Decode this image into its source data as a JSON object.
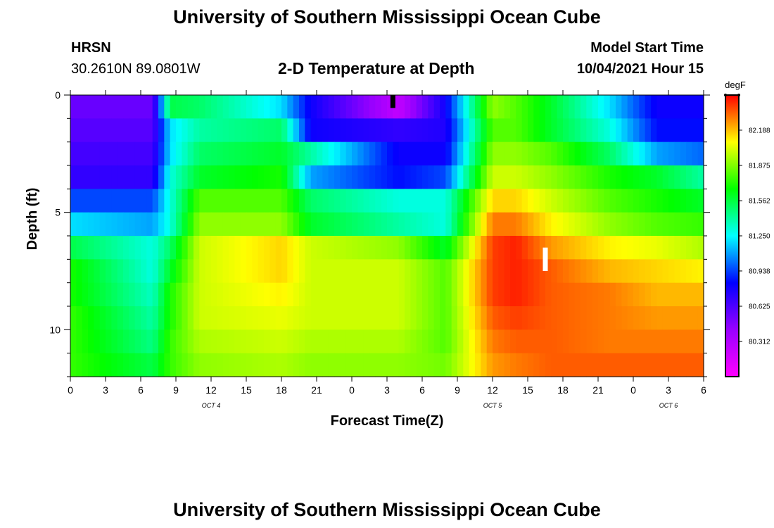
{
  "header": {
    "title": "University of Southern Mississippi Ocean Cube",
    "station": "HRSN",
    "location": "30.2610N  89.0801W",
    "plot_title": "2-D Temperature at Depth",
    "model_label": "Model Start Time",
    "model_time": "10/04/2021 Hour 15"
  },
  "footer": {
    "title": "University of Southern Mississippi Ocean Cube"
  },
  "chart_data": {
    "type": "heatmap",
    "title": "2-D Temperature at Depth",
    "xlabel": "Forecast Time(Z)",
    "ylabel": "Depth (ft)",
    "x_tick_labels": [
      "0",
      "3",
      "6",
      "9",
      "12",
      "15",
      "18",
      "21",
      "0",
      "3",
      "6",
      "9",
      "12",
      "15",
      "18",
      "21",
      "0",
      "3",
      "6"
    ],
    "date_labels": [
      {
        "label": "OCT 4",
        "hour": 12
      },
      {
        "label": "OCT 5",
        "hour": 36
      },
      {
        "label": "OCT 6",
        "hour": 51
      }
    ],
    "y_tick_labels": [
      "0",
      "5",
      "10"
    ],
    "xlim_hours": [
      0,
      54
    ],
    "ylim_ft": [
      0,
      12
    ],
    "colorbar": {
      "unit": "degF",
      "tick_labels": [
        "82.188",
        "81.875",
        "81.562",
        "81.250",
        "80.938",
        "80.625",
        "80.312"
      ],
      "tick_values": [
        82.188,
        81.875,
        81.562,
        81.25,
        80.938,
        80.625,
        80.312
      ],
      "range": [
        80.0,
        82.5
      ],
      "colors": [
        "#ff00ff",
        "#9900ff",
        "#0000ff",
        "#00ffff",
        "#00ff00",
        "#ffff00",
        "#ff0000"
      ]
    },
    "depth_layers_ft": [
      0.5,
      1.5,
      2.5,
      3.5,
      4.5,
      5.5,
      6.5,
      7.5,
      8.5,
      9.5,
      10.5,
      11.5
    ],
    "time_anchors_hours": [
      0,
      7,
      8.5,
      11,
      18,
      20.5,
      28,
      32,
      36,
      38,
      41,
      46,
      50,
      54
    ],
    "temperature_degF": [
      [
        80.55,
        80.55,
        81.55,
        81.5,
        81.2,
        80.8,
        80.25,
        80.8,
        81.9,
        81.8,
        81.6,
        81.2,
        80.8,
        80.8
      ],
      [
        80.6,
        80.6,
        81.2,
        81.4,
        81.5,
        80.8,
        80.7,
        80.75,
        81.8,
        81.8,
        81.6,
        81.3,
        80.85,
        80.85
      ],
      [
        80.65,
        80.65,
        81.2,
        81.5,
        81.6,
        81.4,
        80.8,
        80.8,
        81.9,
        81.9,
        81.8,
        81.5,
        81.1,
        81.0
      ],
      [
        80.7,
        80.7,
        81.3,
        81.6,
        81.7,
        81.1,
        80.85,
        80.95,
        82.0,
        82.0,
        81.9,
        81.7,
        81.6,
        81.4
      ],
      [
        80.95,
        80.95,
        81.3,
        81.8,
        81.8,
        81.5,
        81.3,
        81.3,
        82.15,
        82.15,
        82.0,
        81.8,
        81.7,
        81.6
      ],
      [
        81.2,
        81.1,
        81.3,
        81.9,
        81.9,
        81.6,
        81.4,
        81.3,
        82.3,
        82.3,
        82.1,
        81.9,
        81.8,
        81.75
      ],
      [
        81.55,
        81.3,
        81.5,
        82.0,
        82.15,
        82.0,
        81.9,
        81.6,
        82.4,
        82.45,
        82.25,
        82.1,
        82.05,
        81.95
      ],
      [
        81.7,
        81.3,
        81.6,
        82.0,
        82.15,
        82.0,
        82.0,
        81.8,
        82.4,
        82.45,
        82.35,
        82.2,
        82.15,
        82.1
      ],
      [
        81.7,
        81.35,
        81.7,
        82.0,
        82.1,
        82.0,
        82.0,
        81.8,
        82.4,
        82.45,
        82.35,
        82.3,
        82.2,
        82.2
      ],
      [
        81.75,
        81.4,
        81.7,
        82.0,
        82.05,
        82.0,
        82.0,
        81.8,
        82.35,
        82.4,
        82.35,
        82.3,
        82.25,
        82.25
      ],
      [
        81.75,
        81.45,
        81.75,
        81.95,
        82.0,
        81.95,
        81.95,
        81.8,
        82.3,
        82.35,
        82.35,
        82.3,
        82.3,
        82.3
      ],
      [
        81.75,
        81.55,
        81.75,
        81.9,
        81.95,
        81.9,
        81.9,
        81.85,
        82.25,
        82.3,
        82.35,
        82.35,
        82.35,
        82.35
      ]
    ],
    "markers": [
      {
        "color": "#000000",
        "hour": 27.5,
        "depth_ft_top": 0.0,
        "depth_ft_bottom": 0.55
      },
      {
        "color": "#ffffff",
        "hour": 40.5,
        "depth_ft_top": 6.5,
        "depth_ft_bottom": 7.5
      }
    ]
  }
}
